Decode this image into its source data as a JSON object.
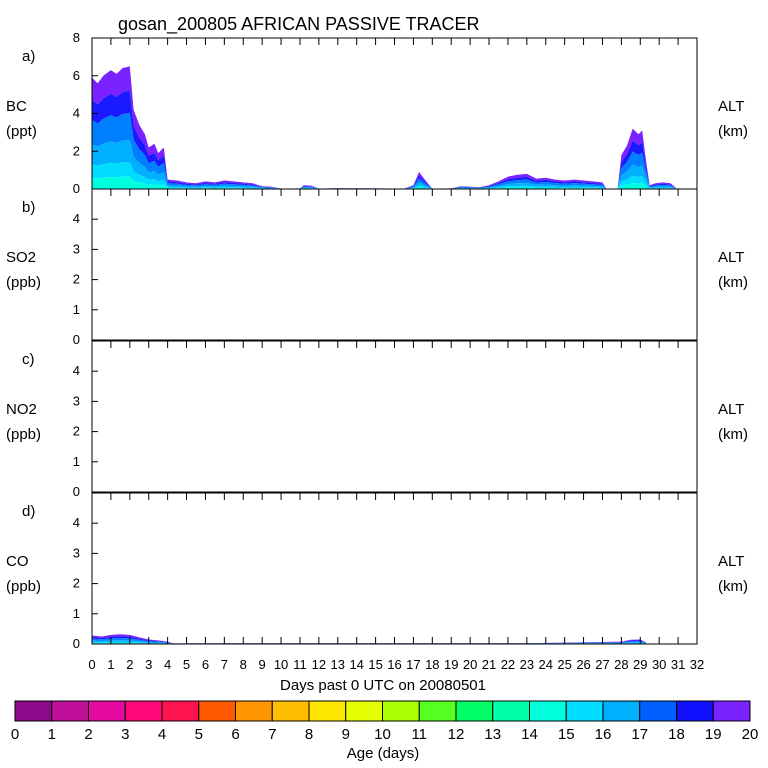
{
  "chart_data": {
    "type": "area",
    "title": "gosan_200805 AFRICAN PASSIVE TRACER",
    "xlabel": "Days past 0 UTC on 20080501",
    "x_ticks": [
      "0",
      "1",
      "2",
      "3",
      "4",
      "5",
      "6",
      "7",
      "8",
      "9",
      "10",
      "11",
      "12",
      "13",
      "14",
      "15",
      "16",
      "17",
      "18",
      "19",
      "20",
      "21",
      "22",
      "23",
      "24",
      "25",
      "26",
      "27",
      "28",
      "29",
      "30",
      "31",
      "32"
    ],
    "xlim": [
      0,
      32
    ],
    "panels": [
      {
        "letter": "a)",
        "species": "BC",
        "unit": "(ppt)",
        "right_label": "ALT",
        "right_unit": "(km)",
        "ylim": [
          0,
          8
        ],
        "y_ticks": [
          "0",
          "2",
          "4",
          "6",
          "8"
        ],
        "profile": [
          [
            0.0,
            5.9
          ],
          [
            0.3,
            5.6
          ],
          [
            0.6,
            6.0
          ],
          [
            1.0,
            6.3
          ],
          [
            1.3,
            6.1
          ],
          [
            1.6,
            6.4
          ],
          [
            2.0,
            6.5
          ],
          [
            2.2,
            4.2
          ],
          [
            2.5,
            3.4
          ],
          [
            2.8,
            2.9
          ],
          [
            3.0,
            2.2
          ],
          [
            3.3,
            2.4
          ],
          [
            3.5,
            1.9
          ],
          [
            3.8,
            2.2
          ],
          [
            4.0,
            0.5
          ],
          [
            4.5,
            0.45
          ],
          [
            5.0,
            0.35
          ],
          [
            5.5,
            0.3
          ],
          [
            6.0,
            0.4
          ],
          [
            6.5,
            0.35
          ],
          [
            7.0,
            0.45
          ],
          [
            7.5,
            0.4
          ],
          [
            8.0,
            0.35
          ],
          [
            8.5,
            0.3
          ],
          [
            9.0,
            0.15
          ],
          [
            9.5,
            0.12
          ],
          [
            10.0,
            0.02
          ],
          [
            11.0,
            0.03
          ],
          [
            11.2,
            0.2
          ],
          [
            11.6,
            0.18
          ],
          [
            12.0,
            0.02
          ],
          [
            13.0,
            0.05
          ],
          [
            16.5,
            0.02
          ],
          [
            17.0,
            0.2
          ],
          [
            17.3,
            0.9
          ],
          [
            17.6,
            0.5
          ],
          [
            18.0,
            0.02
          ],
          [
            19.0,
            0.03
          ],
          [
            19.5,
            0.15
          ],
          [
            20.0,
            0.12
          ],
          [
            20.5,
            0.1
          ],
          [
            21.0,
            0.2
          ],
          [
            21.5,
            0.4
          ],
          [
            22.0,
            0.65
          ],
          [
            22.5,
            0.75
          ],
          [
            23.0,
            0.8
          ],
          [
            23.5,
            0.55
          ],
          [
            24.0,
            0.6
          ],
          [
            24.5,
            0.5
          ],
          [
            25.0,
            0.45
          ],
          [
            25.5,
            0.5
          ],
          [
            26.0,
            0.45
          ],
          [
            26.5,
            0.4
          ],
          [
            27.0,
            0.35
          ],
          [
            27.2,
            0.02
          ],
          [
            27.8,
            0.02
          ],
          [
            28.0,
            1.8
          ],
          [
            28.3,
            2.3
          ],
          [
            28.6,
            3.2
          ],
          [
            28.9,
            2.9
          ],
          [
            29.1,
            3.1
          ],
          [
            29.3,
            1.5
          ],
          [
            29.5,
            0.2
          ],
          [
            29.8,
            0.3
          ],
          [
            30.2,
            0.35
          ],
          [
            30.6,
            0.3
          ],
          [
            30.9,
            0.05
          ]
        ]
      },
      {
        "letter": "b)",
        "species": "SO2",
        "unit": "(ppb)",
        "right_label": "ALT",
        "right_unit": "(km)",
        "ylim": [
          0,
          5
        ],
        "y_ticks": [
          "0",
          "1",
          "2",
          "3",
          "4"
        ],
        "profile": []
      },
      {
        "letter": "c)",
        "species": "NO2",
        "unit": "(ppb)",
        "right_label": "ALT",
        "right_unit": "(km)",
        "ylim": [
          0,
          5
        ],
        "y_ticks": [
          "0",
          "1",
          "2",
          "3",
          "4"
        ],
        "profile": []
      },
      {
        "letter": "d)",
        "species": "CO",
        "unit": "(ppb)",
        "right_label": "ALT",
        "right_unit": "(km)",
        "ylim": [
          0,
          5
        ],
        "y_ticks": [
          "0",
          "1",
          "2",
          "3",
          "4"
        ],
        "profile": [
          [
            0.0,
            0.28
          ],
          [
            0.5,
            0.25
          ],
          [
            1.0,
            0.3
          ],
          [
            1.5,
            0.32
          ],
          [
            2.0,
            0.3
          ],
          [
            2.5,
            0.22
          ],
          [
            3.0,
            0.15
          ],
          [
            3.5,
            0.12
          ],
          [
            4.0,
            0.08
          ],
          [
            4.3,
            0.02
          ],
          [
            6.8,
            0.03
          ],
          [
            7.3,
            0.03
          ],
          [
            22.8,
            0.03
          ],
          [
            23.3,
            0.03
          ],
          [
            28.0,
            0.08
          ],
          [
            28.5,
            0.14
          ],
          [
            29.0,
            0.15
          ],
          [
            29.3,
            0.05
          ]
        ]
      }
    ],
    "age_bands": [
      {
        "start": 0.0,
        "end": 0.1,
        "color": "#00ffdd"
      },
      {
        "start": 0.1,
        "end": 0.22,
        "color": "#00ddff"
      },
      {
        "start": 0.22,
        "end": 0.4,
        "color": "#00b0ff"
      },
      {
        "start": 0.4,
        "end": 0.62,
        "color": "#0080ff"
      },
      {
        "start": 0.62,
        "end": 0.8,
        "color": "#1a1aff"
      },
      {
        "start": 0.8,
        "end": 1.0,
        "color": "#7a22ff"
      }
    ],
    "colorbar": {
      "label": "Age (days)",
      "ticks": [
        "0",
        "1",
        "2",
        "3",
        "4",
        "5",
        "6",
        "7",
        "8",
        "9",
        "10",
        "11",
        "12",
        "13",
        "14",
        "15",
        "16",
        "17",
        "18",
        "19",
        "20"
      ],
      "colors": [
        "#8b0a8b",
        "#c0109a",
        "#e50aa0",
        "#ff0a78",
        "#ff1450",
        "#ff5a00",
        "#ff9600",
        "#ffbe00",
        "#ffe600",
        "#e6ff00",
        "#aaff00",
        "#55ff20",
        "#00ff66",
        "#00ffaa",
        "#00ffdd",
        "#00ddff",
        "#00b0ff",
        "#0060ff",
        "#1010ff",
        "#7a22ff"
      ]
    }
  }
}
